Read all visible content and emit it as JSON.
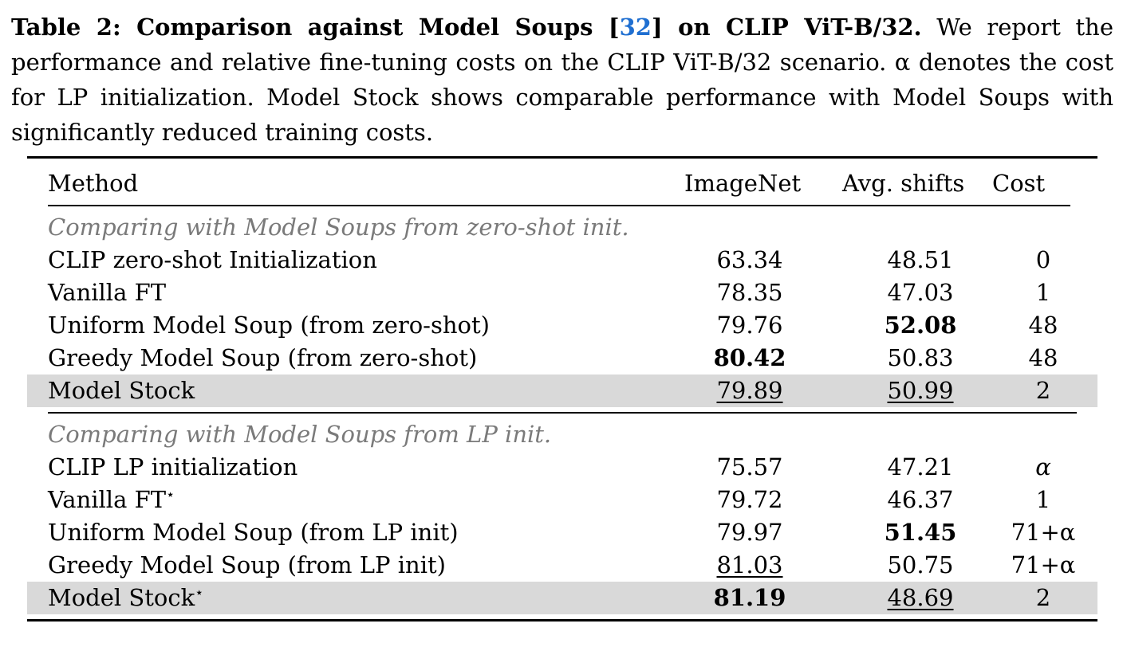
{
  "caption": {
    "label": "Table 2: Comparison against Model Soups [",
    "cite": "32",
    "label_end": "] on CLIP ViT-B/32.",
    "text": " We report the performance and relative fine-tuning costs on the CLIP ViT-B/32 scenario. α denotes the cost for LP initialization. Model Stock shows comparable performance with Model Soups with significantly reduced training costs."
  },
  "table": {
    "headers": {
      "method": "Method",
      "imagenet": "ImageNet",
      "shifts": "Avg. shifts",
      "cost": "Cost"
    },
    "groups": [
      {
        "label": "Comparing with Model Soups from zero-shot init.",
        "rows": [
          {
            "method": "CLIP zero-shot Initialization",
            "star": "",
            "imagenet": "63.34",
            "shifts": "48.51",
            "cost": "0"
          },
          {
            "method": "Vanilla FT",
            "star": "",
            "imagenet": "78.35",
            "shifts": "47.03",
            "cost": "1"
          },
          {
            "method": "Uniform Model Soup (from zero-shot)",
            "star": "",
            "imagenet": "79.76",
            "shifts": "52.08",
            "cost": "48"
          },
          {
            "method": "Greedy Model Soup (from zero-shot)",
            "star": "",
            "imagenet": "80.42",
            "shifts": "50.83",
            "cost": "48"
          },
          {
            "method": "Model Stock",
            "star": "",
            "imagenet": "79.89",
            "shifts": "50.99",
            "cost": "2"
          }
        ]
      },
      {
        "label": "Comparing with Model Soups from LP init.",
        "rows": [
          {
            "method": "CLIP LP initialization",
            "star": "",
            "imagenet": "75.57",
            "shifts": "47.21",
            "cost": "α"
          },
          {
            "method": "Vanilla FT",
            "star": "⋆",
            "imagenet": "79.72",
            "shifts": "46.37",
            "cost": "1"
          },
          {
            "method": "Uniform Model Soup (from LP init)",
            "star": "",
            "imagenet": "79.97",
            "shifts": "51.45",
            "cost": "71+α"
          },
          {
            "method": "Greedy Model Soup (from LP init)",
            "star": "",
            "imagenet": "81.03",
            "shifts": "50.75",
            "cost": "71+α"
          },
          {
            "method": "Model Stock",
            "star": "⋆",
            "imagenet": "81.19",
            "shifts": "48.69",
            "cost": "2"
          }
        ]
      }
    ]
  }
}
